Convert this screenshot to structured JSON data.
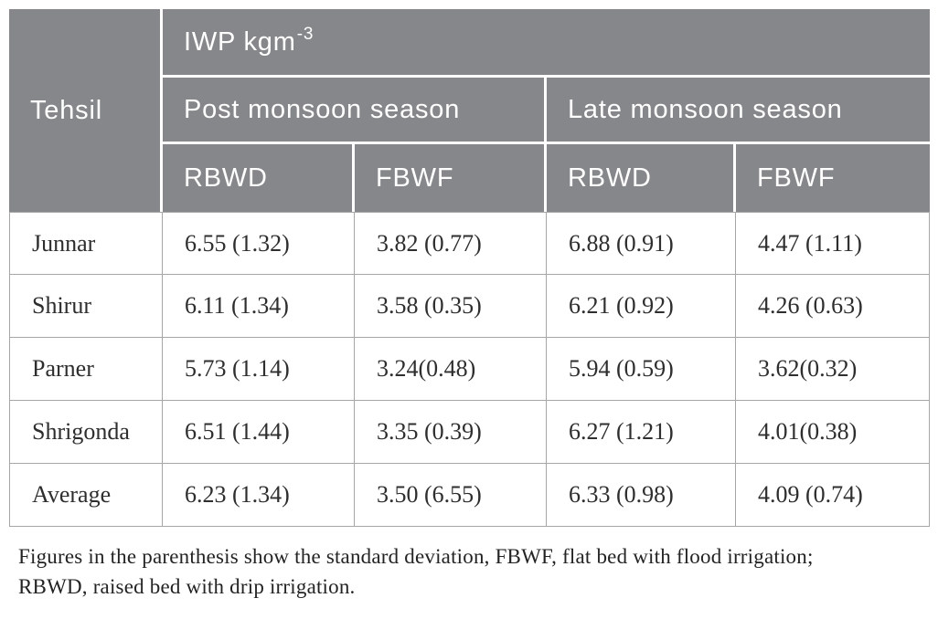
{
  "table": {
    "header": {
      "tehsil": "Tehsil",
      "iwp_label": "IWP kgm",
      "iwp_sup": "-3",
      "season_groups": [
        "Post monsoon season",
        "Late monsoon season"
      ],
      "sub_columns": [
        "RBWD",
        "FBWF",
        "RBWD",
        "FBWF"
      ]
    },
    "rows": [
      {
        "tehsil": "Junnar",
        "values": [
          "6.55 (1.32)",
          "3.82 (0.77)",
          "6.88 (0.91)",
          "4.47 (1.11)"
        ]
      },
      {
        "tehsil": "Shirur",
        "values": [
          "6.11 (1.34)",
          "3.58 (0.35)",
          "6.21 (0.92)",
          "4.26 (0.63)"
        ]
      },
      {
        "tehsil": "Parner",
        "values": [
          "5.73 (1.14)",
          "3.24(0.48)",
          "5.94 (0.59)",
          "3.62(0.32)"
        ]
      },
      {
        "tehsil": "Shrigonda",
        "values": [
          "6.51 (1.44)",
          "3.35 (0.39)",
          "6.27 (1.21)",
          "4.01(0.38)"
        ]
      },
      {
        "tehsil": "Average",
        "values": [
          "6.23 (1.34)",
          "3.50 (6.55)",
          "6.33 (0.98)",
          "4.09 (0.74)"
        ]
      }
    ]
  },
  "footnote": {
    "line1": "Figures in the parenthesis show the standard deviation, FBWF, flat bed with flood irrigation;",
    "line2": "RBWD, raised bed with drip irrigation."
  },
  "colors": {
    "header_bg": "#85878a",
    "header_text": "#ffffff",
    "grid_border": "#a6a6a6",
    "body_text": "#2e2e2e"
  }
}
